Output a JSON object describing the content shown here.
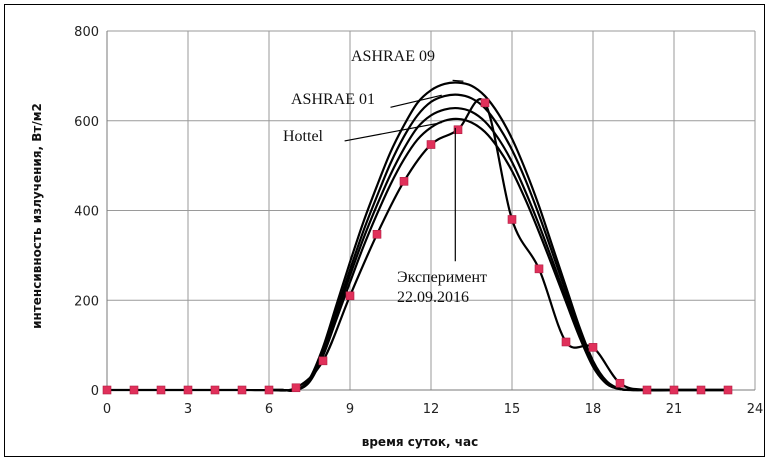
{
  "chart_data": {
    "type": "line",
    "xlabel": "время суток, час",
    "ylabel": "интенсивность излучения, Вт/м2",
    "xlim": [
      0,
      24
    ],
    "ylim": [
      0,
      800
    ],
    "xticks": [
      "0",
      "3",
      "6",
      "9",
      "12",
      "15",
      "18",
      "21",
      "24"
    ],
    "yticks": [
      "0",
      "200",
      "400",
      "600",
      "800"
    ],
    "grid": true,
    "legend": "none",
    "series": [
      {
        "name": "ASHRAE 09",
        "x": [
          6,
          6.5,
          7,
          7.5,
          8,
          8.5,
          9,
          9.5,
          10,
          10.5,
          11,
          11.5,
          12,
          12.5,
          13,
          13.5,
          14,
          14.5,
          15,
          15.5,
          16,
          16.5,
          17,
          17.5,
          18,
          18.5,
          19,
          19.5,
          20,
          21,
          22,
          23
        ],
        "y": [
          0,
          0,
          0,
          25,
          95,
          190,
          285,
          375,
          455,
          530,
          590,
          640,
          668,
          682,
          685,
          678,
          655,
          615,
          560,
          490,
          410,
          320,
          230,
          140,
          65,
          20,
          3,
          0,
          0,
          0,
          0,
          0
        ],
        "color": "#000000"
      },
      {
        "name": "ASHRAE 01",
        "x": [
          6,
          6.5,
          7,
          7.5,
          8,
          8.5,
          9,
          9.5,
          10,
          10.5,
          11,
          11.5,
          12,
          12.5,
          13,
          13.5,
          14,
          14.5,
          15,
          15.5,
          16,
          16.5,
          17,
          17.5,
          18,
          18.5,
          19,
          19.5,
          20,
          21,
          22,
          23
        ],
        "y": [
          0,
          0,
          0,
          22,
          88,
          178,
          268,
          355,
          432,
          505,
          565,
          612,
          642,
          655,
          658,
          650,
          628,
          588,
          535,
          468,
          390,
          305,
          218,
          132,
          60,
          17,
          2,
          0,
          0,
          0,
          0,
          0
        ],
        "color": "#000000"
      },
      {
        "name": "",
        "x": [
          6,
          6.5,
          7,
          7.5,
          8,
          8.5,
          9,
          9.5,
          10,
          10.5,
          11,
          11.5,
          12,
          12.5,
          13,
          13.5,
          14,
          14.5,
          15,
          15.5,
          16,
          16.5,
          17,
          17.5,
          18,
          18.5,
          19,
          19.5,
          20,
          21,
          22,
          23
        ],
        "y": [
          0,
          0,
          0,
          20,
          82,
          168,
          255,
          338,
          412,
          480,
          538,
          585,
          612,
          625,
          628,
          620,
          598,
          560,
          508,
          442,
          368,
          288,
          205,
          124,
          56,
          15,
          2,
          0,
          0,
          0,
          0,
          0
        ],
        "color": "#000000"
      },
      {
        "name": "Hottel",
        "x": [
          6,
          6.5,
          7,
          7.5,
          8,
          8.5,
          9,
          9.5,
          10,
          10.5,
          11,
          11.5,
          12,
          12.5,
          13,
          13.5,
          14,
          14.5,
          15,
          15.5,
          16,
          16.5,
          17,
          17.5,
          18,
          18.5,
          19,
          19.5,
          20,
          21,
          22,
          23
        ],
        "y": [
          0,
          0,
          0,
          18,
          76,
          158,
          240,
          320,
          392,
          458,
          514,
          558,
          585,
          600,
          604,
          596,
          575,
          538,
          488,
          424,
          352,
          275,
          196,
          118,
          52,
          14,
          2,
          0,
          0,
          0,
          0,
          0
        ],
        "color": "#000000"
      },
      {
        "name": "Эксперимент 22.09.2016",
        "x": [
          0,
          1,
          2,
          3,
          4,
          5,
          6,
          7,
          8,
          9,
          10,
          11,
          12,
          13,
          14,
          15,
          16,
          17,
          18,
          19,
          20,
          21,
          22,
          23
        ],
        "y": [
          0,
          0,
          0,
          0,
          0,
          0,
          0,
          5,
          65,
          210,
          347,
          465,
          547,
          580,
          640,
          380,
          270,
          107,
          95,
          15,
          0,
          0,
          0,
          0
        ],
        "color": "#000000",
        "marker_color": "#e0305a"
      }
    ],
    "annotations": [
      {
        "text": "ASHRAE 09"
      },
      {
        "text": "ASHRAE 01"
      },
      {
        "text": "Hottel"
      },
      {
        "text": "Эксперимент"
      },
      {
        "text": "22.09.2016"
      }
    ]
  }
}
